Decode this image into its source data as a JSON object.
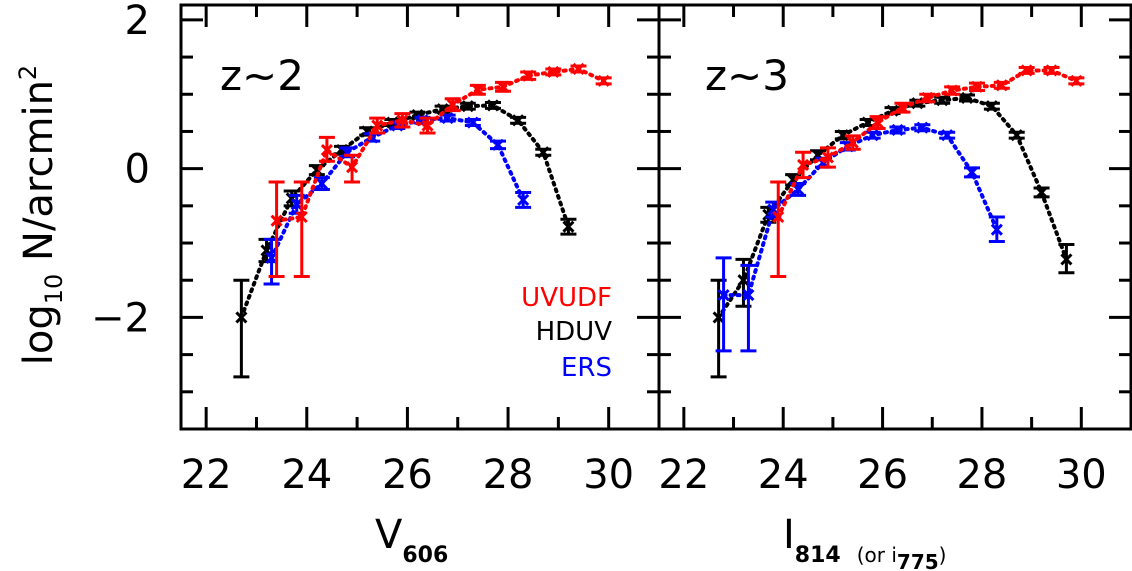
{
  "chart_data": [
    {
      "type": "scatter",
      "panel_label": "z~2",
      "xlim": [
        21.5,
        31
      ],
      "ylim": [
        -3.5,
        2.2
      ],
      "xticks": [
        "22",
        "24",
        "26",
        "28",
        "30"
      ],
      "yticks": [
        "2",
        "0",
        "−2"
      ],
      "ylabel_base": "log",
      "ylabel_sub": "10",
      "ylabel_rest": " N/arcmin",
      "ylabel_sup": "2",
      "xlabel_main": "V",
      "xlabel_sub": "606",
      "xlabel_note": "",
      "xlabel_note_sub": "",
      "series": [
        {
          "name": "HDUV",
          "color": "#000000",
          "points": [
            {
              "x": 22.7,
              "y": -2.0,
              "lo": -2.8,
              "hi": -1.5
            },
            {
              "x": 23.2,
              "y": -1.1,
              "lo": -1.25,
              "hi": -0.95
            },
            {
              "x": 23.7,
              "y": -0.4,
              "lo": -0.5,
              "hi": -0.3
            },
            {
              "x": 24.2,
              "y": -0.02,
              "lo": -0.08,
              "hi": 0.04
            },
            {
              "x": 24.7,
              "y": 0.25,
              "lo": 0.2,
              "hi": 0.3
            },
            {
              "x": 25.2,
              "y": 0.5,
              "lo": 0.45,
              "hi": 0.55
            },
            {
              "x": 25.7,
              "y": 0.62,
              "lo": 0.58,
              "hi": 0.66
            },
            {
              "x": 26.2,
              "y": 0.72,
              "lo": 0.68,
              "hi": 0.76
            },
            {
              "x": 26.7,
              "y": 0.8,
              "lo": 0.76,
              "hi": 0.84
            },
            {
              "x": 27.2,
              "y": 0.84,
              "lo": 0.8,
              "hi": 0.88
            },
            {
              "x": 27.7,
              "y": 0.85,
              "lo": 0.81,
              "hi": 0.89
            },
            {
              "x": 28.2,
              "y": 0.65,
              "lo": 0.61,
              "hi": 0.69
            },
            {
              "x": 28.7,
              "y": 0.22,
              "lo": 0.18,
              "hi": 0.26
            },
            {
              "x": 29.2,
              "y": -0.78,
              "lo": -0.88,
              "hi": -0.68
            }
          ]
        },
        {
          "name": "ERS",
          "color": "#0000ff",
          "points": [
            {
              "x": 23.3,
              "y": -1.2,
              "lo": -1.55,
              "hi": -0.95
            },
            {
              "x": 23.8,
              "y": -0.48,
              "lo": -0.6,
              "hi": -0.36
            },
            {
              "x": 24.3,
              "y": -0.2,
              "lo": -0.28,
              "hi": -0.12
            },
            {
              "x": 24.8,
              "y": 0.22,
              "lo": 0.16,
              "hi": 0.28
            },
            {
              "x": 25.3,
              "y": 0.42,
              "lo": 0.37,
              "hi": 0.47
            },
            {
              "x": 25.8,
              "y": 0.58,
              "lo": 0.54,
              "hi": 0.62
            },
            {
              "x": 26.3,
              "y": 0.65,
              "lo": 0.61,
              "hi": 0.69
            },
            {
              "x": 26.8,
              "y": 0.68,
              "lo": 0.64,
              "hi": 0.72
            },
            {
              "x": 27.3,
              "y": 0.62,
              "lo": 0.58,
              "hi": 0.66
            },
            {
              "x": 27.8,
              "y": 0.32,
              "lo": 0.27,
              "hi": 0.37
            },
            {
              "x": 28.3,
              "y": -0.42,
              "lo": -0.52,
              "hi": -0.32
            }
          ]
        },
        {
          "name": "UVUDF",
          "color": "#ff0000",
          "points": [
            {
              "x": 23.4,
              "y": -0.7,
              "lo": -1.45,
              "hi": -0.18
            },
            {
              "x": 23.9,
              "y": -0.65,
              "lo": -1.45,
              "hi": -0.18
            },
            {
              "x": 24.4,
              "y": 0.25,
              "lo": 0.1,
              "hi": 0.42
            },
            {
              "x": 24.9,
              "y": 0.02,
              "lo": -0.18,
              "hi": 0.18
            },
            {
              "x": 25.4,
              "y": 0.58,
              "lo": 0.48,
              "hi": 0.68
            },
            {
              "x": 25.9,
              "y": 0.65,
              "lo": 0.56,
              "hi": 0.74
            },
            {
              "x": 26.4,
              "y": 0.58,
              "lo": 0.48,
              "hi": 0.68
            },
            {
              "x": 26.9,
              "y": 0.86,
              "lo": 0.78,
              "hi": 0.94
            },
            {
              "x": 27.4,
              "y": 1.06,
              "lo": 1.0,
              "hi": 1.12
            },
            {
              "x": 27.9,
              "y": 1.1,
              "lo": 1.04,
              "hi": 1.16
            },
            {
              "x": 28.4,
              "y": 1.25,
              "lo": 1.2,
              "hi": 1.3
            },
            {
              "x": 28.9,
              "y": 1.3,
              "lo": 1.26,
              "hi": 1.34
            },
            {
              "x": 29.4,
              "y": 1.34,
              "lo": 1.3,
              "hi": 1.38
            },
            {
              "x": 29.9,
              "y": 1.18,
              "lo": 1.14,
              "hi": 1.22
            }
          ]
        }
      ],
      "legend": [
        {
          "label": "UVUDF",
          "color": "#ff0000"
        },
        {
          "label": "HDUV",
          "color": "#000000"
        },
        {
          "label": "ERS",
          "color": "#0000ff"
        }
      ],
      "legend_position": "bottom-right"
    },
    {
      "type": "scatter",
      "panel_label": "z~3",
      "xlim": [
        21.5,
        31
      ],
      "ylim": [
        -3.5,
        2.2
      ],
      "xticks": [
        "22",
        "24",
        "26",
        "28",
        "30"
      ],
      "yticks": [
        "2",
        "0",
        "−2"
      ],
      "xlabel_main": "I",
      "xlabel_sub": "814",
      "xlabel_note": "(or i",
      "xlabel_note_sub": "775",
      "xlabel_note_end": ")",
      "series": [
        {
          "name": "HDUV",
          "color": "#000000",
          "points": [
            {
              "x": 22.7,
              "y": -2.0,
              "lo": -2.8,
              "hi": -1.5
            },
            {
              "x": 23.2,
              "y": -1.5,
              "lo": -1.85,
              "hi": -1.22
            },
            {
              "x": 23.7,
              "y": -0.62,
              "lo": -0.72,
              "hi": -0.52
            },
            {
              "x": 24.2,
              "y": -0.15,
              "lo": -0.22,
              "hi": -0.08
            },
            {
              "x": 24.7,
              "y": 0.18,
              "lo": 0.12,
              "hi": 0.24
            },
            {
              "x": 25.2,
              "y": 0.45,
              "lo": 0.4,
              "hi": 0.5
            },
            {
              "x": 25.7,
              "y": 0.62,
              "lo": 0.58,
              "hi": 0.66
            },
            {
              "x": 26.2,
              "y": 0.78,
              "lo": 0.74,
              "hi": 0.82
            },
            {
              "x": 26.7,
              "y": 0.88,
              "lo": 0.84,
              "hi": 0.92
            },
            {
              "x": 27.2,
              "y": 0.92,
              "lo": 0.88,
              "hi": 0.96
            },
            {
              "x": 27.7,
              "y": 0.95,
              "lo": 0.91,
              "hi": 0.99
            },
            {
              "x": 28.2,
              "y": 0.84,
              "lo": 0.8,
              "hi": 0.88
            },
            {
              "x": 28.7,
              "y": 0.45,
              "lo": 0.41,
              "hi": 0.49
            },
            {
              "x": 29.2,
              "y": -0.32,
              "lo": -0.38,
              "hi": -0.26
            },
            {
              "x": 29.7,
              "y": -1.22,
              "lo": -1.4,
              "hi": -1.02
            }
          ]
        },
        {
          "name": "ERS",
          "color": "#0000ff",
          "points": [
            {
              "x": 22.8,
              "y": -1.7,
              "lo": -2.45,
              "hi": -1.2
            },
            {
              "x": 23.3,
              "y": -1.7,
              "lo": -2.45,
              "hi": -1.3
            },
            {
              "x": 23.8,
              "y": -0.55,
              "lo": -0.65,
              "hi": -0.45
            },
            {
              "x": 24.3,
              "y": -0.28,
              "lo": -0.36,
              "hi": -0.2
            },
            {
              "x": 24.8,
              "y": 0.08,
              "lo": 0.02,
              "hi": 0.14
            },
            {
              "x": 25.3,
              "y": 0.3,
              "lo": 0.25,
              "hi": 0.35
            },
            {
              "x": 25.8,
              "y": 0.45,
              "lo": 0.41,
              "hi": 0.49
            },
            {
              "x": 26.3,
              "y": 0.52,
              "lo": 0.48,
              "hi": 0.56
            },
            {
              "x": 26.8,
              "y": 0.55,
              "lo": 0.51,
              "hi": 0.59
            },
            {
              "x": 27.3,
              "y": 0.45,
              "lo": 0.41,
              "hi": 0.49
            },
            {
              "x": 27.8,
              "y": -0.05,
              "lo": -0.11,
              "hi": 0.01
            },
            {
              "x": 28.3,
              "y": -0.82,
              "lo": -0.98,
              "hi": -0.65
            }
          ]
        },
        {
          "name": "UVUDF",
          "color": "#ff0000",
          "points": [
            {
              "x": 23.9,
              "y": -0.65,
              "lo": -1.45,
              "hi": -0.18
            },
            {
              "x": 24.4,
              "y": 0.05,
              "lo": -0.12,
              "hi": 0.22
            },
            {
              "x": 24.9,
              "y": 0.15,
              "lo": 0.02,
              "hi": 0.28
            },
            {
              "x": 25.4,
              "y": 0.35,
              "lo": 0.26,
              "hi": 0.44
            },
            {
              "x": 25.9,
              "y": 0.62,
              "lo": 0.54,
              "hi": 0.7
            },
            {
              "x": 26.4,
              "y": 0.82,
              "lo": 0.76,
              "hi": 0.88
            },
            {
              "x": 26.9,
              "y": 0.95,
              "lo": 0.9,
              "hi": 1.0
            },
            {
              "x": 27.4,
              "y": 1.05,
              "lo": 1.0,
              "hi": 1.1
            },
            {
              "x": 27.9,
              "y": 1.1,
              "lo": 1.05,
              "hi": 1.15
            },
            {
              "x": 28.4,
              "y": 1.12,
              "lo": 1.08,
              "hi": 1.16
            },
            {
              "x": 28.9,
              "y": 1.32,
              "lo": 1.28,
              "hi": 1.36
            },
            {
              "x": 29.4,
              "y": 1.32,
              "lo": 1.28,
              "hi": 1.36
            },
            {
              "x": 29.9,
              "y": 1.18,
              "lo": 1.14,
              "hi": 1.22
            }
          ]
        }
      ]
    }
  ]
}
